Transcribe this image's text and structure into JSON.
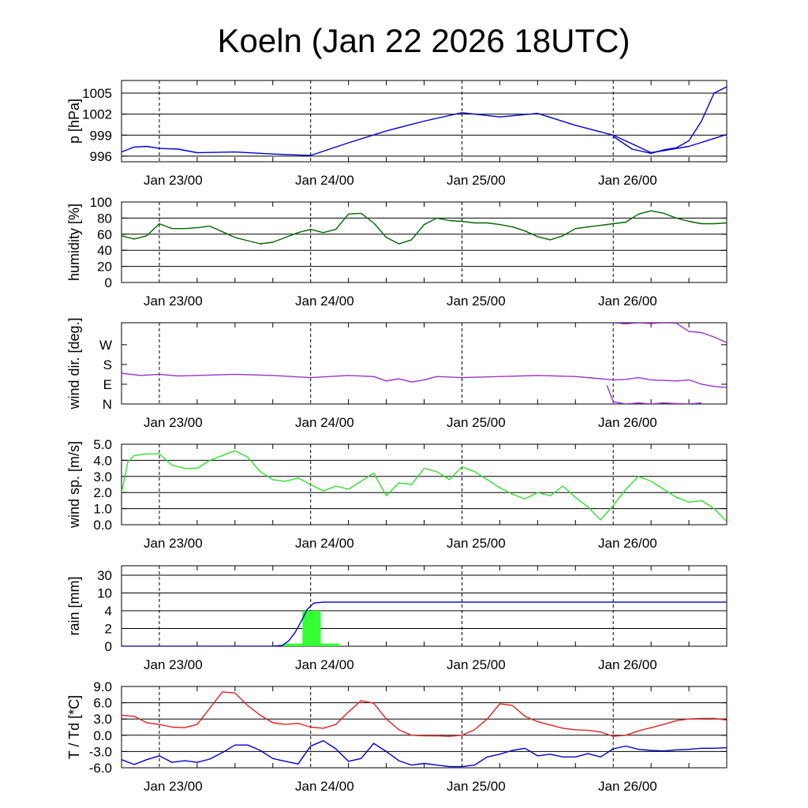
{
  "title": "Koeln (Jan 22 2026 18UTC)",
  "x_tick_labels": [
    "Jan 23/00",
    "Jan 24/00",
    "Jan 25/00",
    "Jan 26/00"
  ],
  "chart_data": [
    {
      "id": "pressure",
      "type": "line",
      "ylabel": "p [hPa]",
      "ylim": [
        995.2,
        1006.8
      ],
      "yticks": [
        996,
        999,
        1002,
        1005
      ],
      "ytick_labels": [
        "996",
        "999",
        "1002",
        "1005"
      ],
      "grid": true,
      "x_unit": "hours since Jan 22 18UTC",
      "xlim": [
        0,
        96
      ],
      "series": [
        {
          "color": "#0000cc",
          "x": [
            0,
            2,
            4,
            6,
            9,
            12,
            18,
            24,
            30,
            36,
            42,
            48,
            54,
            60,
            66,
            72,
            78,
            84,
            90,
            96
          ],
          "y": [
            996.6,
            997.3,
            997.4,
            997.1,
            997.0,
            996.5,
            996.6,
            996.3,
            996.1,
            997.9,
            999.6,
            1001.0,
            1002.2,
            1001.6,
            1002.1,
            1000.4,
            999.0,
            996.5,
            997.4,
            999.1
          ]
        },
        {
          "color": "#0000cc",
          "x": [
            78,
            81,
            84,
            86,
            88,
            90,
            92,
            94,
            96
          ],
          "y": [
            998.8,
            997.0,
            996.4,
            996.9,
            997.2,
            998.2,
            1001.0,
            1005.0,
            1005.9
          ]
        }
      ]
    },
    {
      "id": "humidity",
      "type": "line",
      "ylabel": "humidity [%]",
      "ylim": [
        0,
        100
      ],
      "yticks": [
        0,
        20,
        40,
        60,
        80,
        100
      ],
      "ytick_labels": [
        "0",
        "20",
        "40",
        "60",
        "80",
        "100"
      ],
      "grid": true,
      "xlim": [
        0,
        96
      ],
      "series": [
        {
          "color": "#006600",
          "x": [
            0,
            2,
            4,
            6,
            8,
            10,
            12,
            14,
            16,
            18,
            20,
            22,
            24,
            26,
            28,
            30,
            32,
            34,
            36,
            38,
            40,
            42,
            44,
            46,
            48,
            50,
            52,
            54,
            56,
            58,
            60,
            62,
            64,
            66,
            68,
            70,
            72,
            74,
            76,
            78,
            80,
            82,
            84,
            86,
            88,
            90,
            92,
            94,
            96
          ],
          "y": [
            58,
            54,
            58,
            73,
            67,
            67,
            68,
            70,
            63,
            56,
            52,
            48,
            50,
            56,
            62,
            66,
            62,
            66,
            85,
            86,
            74,
            56,
            48,
            53,
            72,
            80,
            77,
            76,
            74,
            74,
            72,
            69,
            64,
            57,
            53,
            58,
            67,
            69,
            71,
            73,
            75,
            85,
            89,
            86,
            80,
            76,
            73,
            73,
            74
          ]
        }
      ]
    },
    {
      "id": "wind-direction",
      "type": "line",
      "ylabel": "wind dir. [deg.]",
      "ylim": [
        0,
        370
      ],
      "yticks": [
        0,
        90,
        180,
        270
      ],
      "ytick_labels": [
        "N",
        "E",
        "S",
        "W"
      ],
      "grid": false,
      "xlim": [
        0,
        96
      ],
      "series": [
        {
          "color": "#9933cc",
          "x": [
            0,
            3,
            6,
            9,
            12,
            18,
            24,
            30,
            36,
            40,
            42,
            44,
            46,
            48,
            50,
            54,
            60,
            66,
            72,
            76,
            78,
            80,
            82,
            84,
            88,
            90,
            92,
            94,
            96
          ],
          "y": [
            140,
            130,
            135,
            128,
            130,
            135,
            130,
            120,
            130,
            125,
            105,
            115,
            100,
            110,
            125,
            120,
            125,
            130,
            125,
            115,
            110,
            112,
            120,
            110,
            105,
            110,
            90,
            80,
            75
          ]
        },
        {
          "color": "#9933cc",
          "x": [
            77,
            78,
            80,
            82,
            84,
            86,
            88,
            90,
            92
          ],
          "y": [
            85,
            10,
            0,
            5,
            0,
            5,
            2,
            0,
            5
          ]
        },
        {
          "color": "#9933cc",
          "x": [
            78,
            80,
            82,
            84,
            86,
            88,
            90,
            92,
            94,
            96
          ],
          "y": [
            370,
            365,
            370,
            366,
            370,
            368,
            330,
            325,
            305,
            280
          ]
        }
      ]
    },
    {
      "id": "wind-speed",
      "type": "line",
      "ylabel": "wind sp. [m/s]",
      "ylim": [
        0,
        5
      ],
      "yticks": [
        0,
        1,
        2,
        3,
        4,
        5
      ],
      "ytick_labels": [
        "0.0",
        "1.0",
        "2.0",
        "3.0",
        "4.0",
        "5.0"
      ],
      "grid": true,
      "xlim": [
        0,
        96
      ],
      "series": [
        {
          "color": "#33dd33",
          "x": [
            0,
            1,
            2,
            4,
            6,
            8,
            10,
            12,
            14,
            16,
            18,
            20,
            22,
            24,
            26,
            28,
            30,
            32,
            34,
            36,
            38,
            40,
            42,
            44,
            46,
            48,
            50,
            52,
            54,
            56,
            58,
            60,
            62,
            64,
            66,
            68,
            70,
            72,
            74,
            76,
            78,
            80,
            82,
            84,
            86,
            88,
            90,
            92,
            94,
            96
          ],
          "y": [
            2.0,
            3.9,
            4.3,
            4.4,
            4.4,
            3.7,
            3.5,
            3.5,
            4.0,
            4.3,
            4.6,
            4.2,
            3.3,
            2.8,
            2.7,
            2.9,
            2.5,
            2.1,
            2.4,
            2.2,
            2.7,
            3.2,
            1.8,
            2.6,
            2.5,
            3.5,
            3.3,
            2.8,
            3.6,
            3.3,
            2.8,
            2.3,
            1.9,
            1.6,
            2.0,
            1.8,
            2.4,
            1.7,
            1.1,
            0.3,
            1.2,
            2.2,
            3.0,
            2.7,
            2.2,
            1.7,
            1.4,
            1.5,
            1.0,
            0.2
          ]
        }
      ]
    },
    {
      "id": "rain",
      "type": "bar",
      "ylabel": "rain [mm]",
      "yscale": "piecewise (0, 2, 4, 10, 30 equally spaced)",
      "yticks": [
        0,
        2,
        4,
        10,
        30
      ],
      "ytick_labels": [
        "0",
        "2",
        "4",
        "10",
        "30"
      ],
      "grid": true,
      "xlim": [
        0,
        96
      ],
      "bars": [
        {
          "x": [
            25.6,
            30.2
          ],
          "value": 0.3
        },
        {
          "x": [
            28.7,
            31.6
          ],
          "value": 4.0
        },
        {
          "x": [
            31.6,
            34.6
          ],
          "value": 0.3
        }
      ],
      "series": [
        {
          "color": "#0000cc",
          "type": "cumulative",
          "x": [
            0,
            12,
            24,
            25.5,
            26.5,
            27.5,
            28.5,
            29.5,
            30.5,
            32,
            60,
            96
          ],
          "y": [
            0,
            0,
            0.02,
            0.1,
            0.6,
            1.5,
            2.8,
            4.6,
            6.6,
            6.9,
            6.9,
            6.9
          ]
        }
      ]
    },
    {
      "id": "temperature",
      "type": "line",
      "ylabel": "T / Td [*C]",
      "ylim": [
        -6,
        9
      ],
      "yticks": [
        -6,
        -3,
        0,
        3,
        6,
        9
      ],
      "ytick_labels": [
        "-6.0",
        "-3.0",
        "0.0",
        "3.0",
        "6.0",
        "9.0"
      ],
      "grid": true,
      "xlim": [
        0,
        96
      ],
      "series": [
        {
          "color": "#dd2222",
          "x": [
            0,
            2,
            4,
            6,
            8,
            10,
            12,
            14,
            16,
            18,
            20,
            22,
            24,
            26,
            28,
            30,
            32,
            34,
            36,
            38,
            40,
            42,
            44,
            46,
            48,
            50,
            52,
            54,
            56,
            58,
            60,
            62,
            64,
            66,
            68,
            70,
            72,
            74,
            76,
            78,
            80,
            82,
            84,
            86,
            88,
            90,
            92,
            94,
            96
          ],
          "y": [
            3.7,
            3.5,
            2.3,
            2.0,
            1.5,
            1.4,
            2.0,
            5.0,
            8.0,
            7.8,
            5.5,
            3.7,
            2.3,
            2.0,
            2.2,
            1.5,
            1.3,
            2.0,
            4.3,
            6.4,
            5.9,
            3.0,
            1.0,
            0.0,
            -0.1,
            -0.1,
            -0.2,
            0.0,
            1.0,
            3.0,
            5.8,
            5.5,
            3.5,
            2.5,
            1.9,
            1.3,
            1.0,
            0.9,
            0.6,
            -0.2,
            0.0,
            0.8,
            1.4,
            2.0,
            2.7,
            3.0,
            3.1,
            3.1,
            2.8
          ]
        },
        {
          "color": "#0000cc",
          "x": [
            0,
            2,
            4,
            6,
            8,
            10,
            12,
            14,
            16,
            18,
            20,
            22,
            24,
            26,
            28,
            30,
            32,
            34,
            36,
            38,
            40,
            42,
            44,
            46,
            48,
            50,
            52,
            54,
            56,
            58,
            60,
            62,
            64,
            66,
            68,
            70,
            72,
            74,
            76,
            78,
            80,
            82,
            84,
            86,
            88,
            90,
            92,
            94,
            96
          ],
          "y": [
            -4.5,
            -5.4,
            -4.5,
            -3.8,
            -5.0,
            -4.7,
            -5.0,
            -4.4,
            -3.2,
            -1.8,
            -1.8,
            -2.8,
            -4.3,
            -4.8,
            -5.3,
            -2.0,
            -1.0,
            -2.5,
            -4.8,
            -4.3,
            -1.5,
            -3.0,
            -4.7,
            -5.5,
            -5.2,
            -5.5,
            -5.8,
            -5.8,
            -5.5,
            -4.0,
            -3.5,
            -2.8,
            -2.4,
            -3.8,
            -3.5,
            -4.0,
            -4.0,
            -3.4,
            -4.0,
            -2.5,
            -2.0,
            -2.6,
            -2.8,
            -2.9,
            -2.7,
            -2.6,
            -2.4,
            -2.4,
            -2.3
          ]
        }
      ]
    }
  ]
}
